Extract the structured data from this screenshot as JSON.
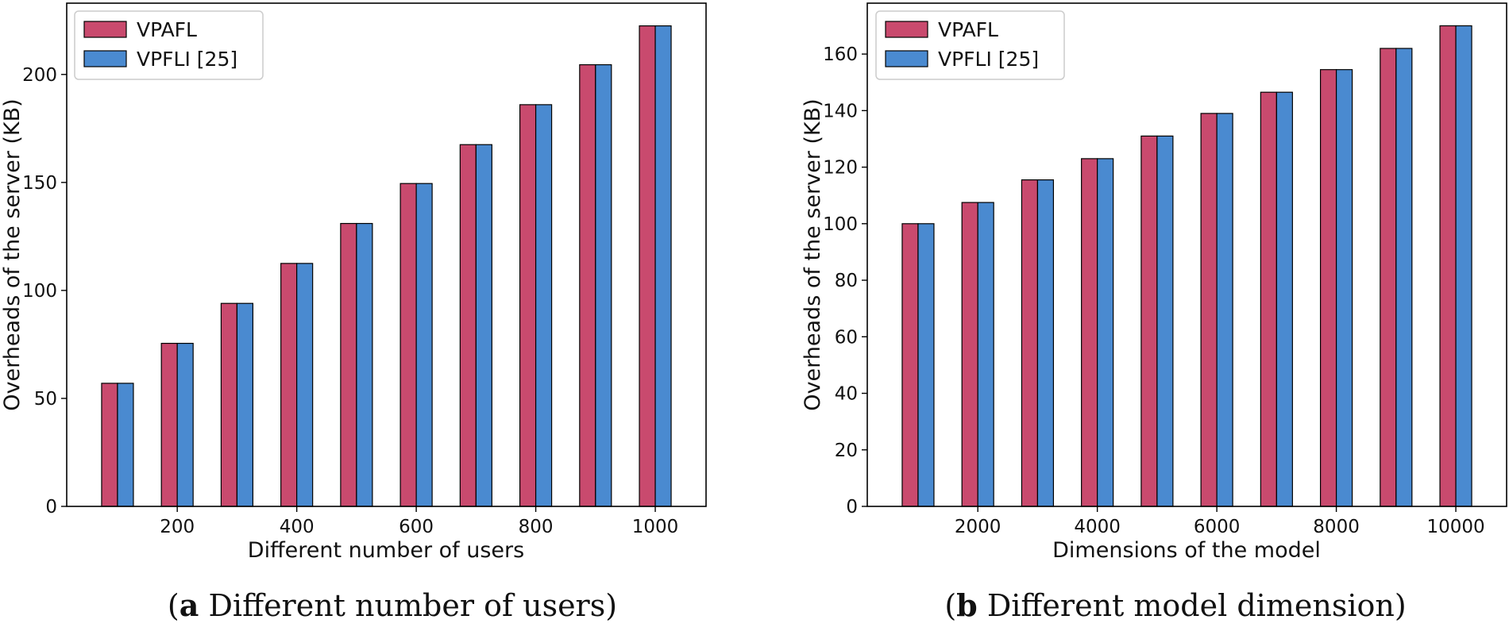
{
  "chart_data": [
    {
      "type": "bar",
      "caption_letter": "a",
      "caption_text": " Different number of users",
      "xlabel": "Different number of users",
      "ylabel": "Overheads of the server (KB)",
      "x": [
        100,
        200,
        300,
        400,
        500,
        600,
        700,
        800,
        900,
        1000
      ],
      "xticks": [
        200,
        400,
        600,
        800,
        1000
      ],
      "yticks": [
        0,
        50,
        100,
        150,
        200
      ],
      "ylim": [
        0,
        233
      ],
      "grid": false,
      "legend_position": "top-left",
      "colors": {
        "VPAFL": "#c94a6e",
        "VPFLI [25]": "#4a8ad0"
      },
      "series": [
        {
          "name": "VPAFL",
          "values": [
            57,
            75.5,
            94,
            112.5,
            131,
            149.5,
            167.5,
            186,
            204.5,
            222.5
          ]
        },
        {
          "name": "VPFLI [25]",
          "values": [
            57,
            75.5,
            94,
            112.5,
            131,
            149.5,
            167.5,
            186,
            204.5,
            222.5
          ]
        }
      ]
    },
    {
      "type": "bar",
      "caption_letter": "b",
      "caption_text": " Different model dimension",
      "xlabel": "Dimensions of the model",
      "ylabel": "Overheads of the server (KB)",
      "x": [
        1000,
        2000,
        3000,
        4000,
        5000,
        6000,
        7000,
        8000,
        9000,
        10000
      ],
      "xticks": [
        2000,
        4000,
        6000,
        8000,
        10000
      ],
      "yticks": [
        0,
        20,
        40,
        60,
        80,
        100,
        120,
        140,
        160
      ],
      "ylim": [
        0,
        178
      ],
      "grid": false,
      "legend_position": "top-left",
      "colors": {
        "VPAFL": "#c94a6e",
        "VPFLI [25]": "#4a8ad0"
      },
      "series": [
        {
          "name": "VPAFL",
          "values": [
            100,
            107.5,
            115.5,
            123,
            131,
            139,
            146.5,
            154.5,
            162,
            170
          ]
        },
        {
          "name": "VPFLI [25]",
          "values": [
            100,
            107.5,
            115.5,
            123,
            131,
            139,
            146.5,
            154.5,
            162,
            170
          ]
        }
      ]
    }
  ]
}
